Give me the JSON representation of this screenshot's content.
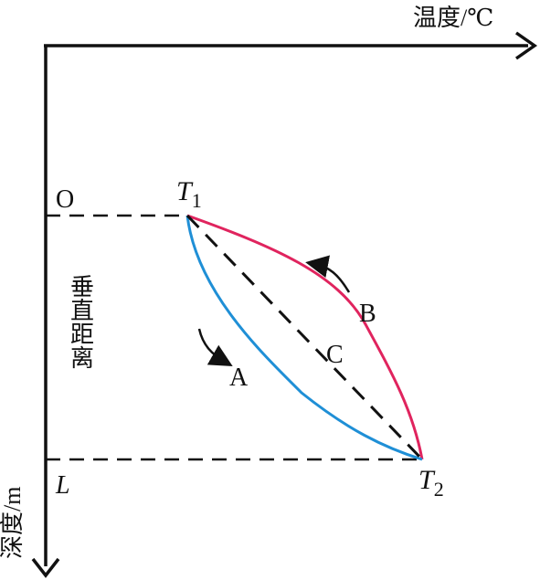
{
  "axes": {
    "x_label": "温度/℃",
    "y_label": "深度/m",
    "origin_label": "O",
    "bottom_label": "L"
  },
  "points": {
    "t1_base": "T",
    "t1_sub": "1",
    "t2_base": "T",
    "t2_sub": "2"
  },
  "vertical_label": "垂直距离",
  "curves": [
    {
      "label": "A",
      "color": "#1f8fd6"
    },
    {
      "label": "B",
      "color": "#e0245e"
    },
    {
      "label": "C",
      "color": "#111111"
    }
  ]
}
